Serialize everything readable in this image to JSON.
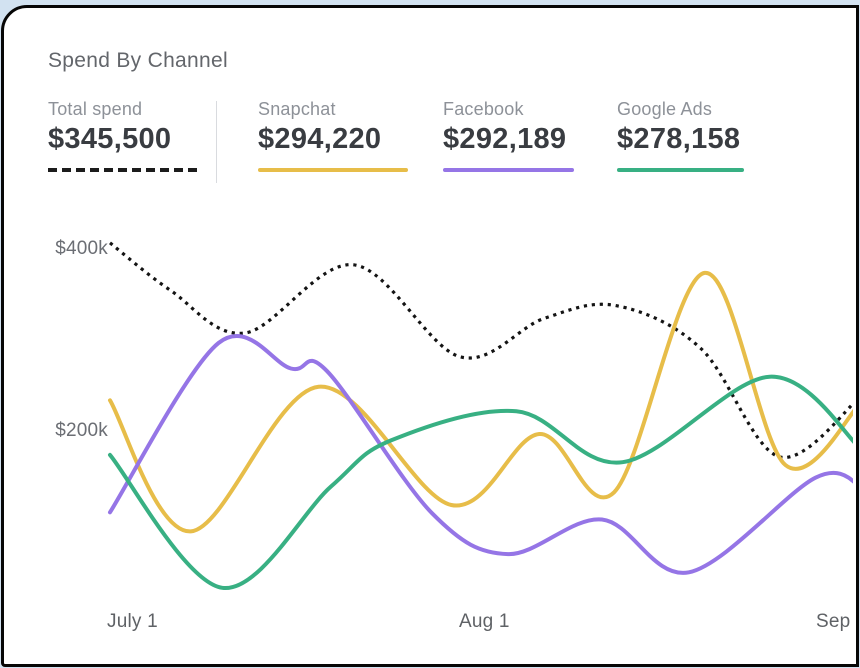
{
  "title": "Spend By Channel",
  "chart_data": {
    "type": "line",
    "title": "Spend By Channel",
    "x_axis": {
      "ticks": [
        "July 1",
        "Aug 1",
        "Sep"
      ],
      "unit": "date",
      "domain_days": [
        0,
        62.3
      ]
    },
    "y_axis": {
      "ticks": [
        "$400k",
        "$200k"
      ],
      "tick_values_k": [
        400,
        200
      ],
      "unit": "USD thousands",
      "grid": false
    },
    "legend_position": "top",
    "series": [
      {
        "name": "Total spend",
        "total": "$345,500",
        "color": "#141414",
        "line_style": "dotted",
        "points_day_valuek": [
          [
            0,
            399
          ],
          [
            5,
            347
          ],
          [
            11.2,
            300
          ],
          [
            20.2,
            375
          ],
          [
            29,
            274
          ],
          [
            36,
            316
          ],
          [
            42,
            330
          ],
          [
            49,
            283
          ],
          [
            55.5,
            164
          ],
          [
            62.3,
            231
          ]
        ]
      },
      {
        "name": "Snapchat",
        "total": "$294,220",
        "color": "#e7bd49",
        "line_style": "solid",
        "points_day_valuek": [
          [
            0,
            226
          ],
          [
            6.7,
            82
          ],
          [
            17.3,
            241
          ],
          [
            28.3,
            111
          ],
          [
            35.6,
            189
          ],
          [
            41.8,
            125
          ],
          [
            49.3,
            366
          ],
          [
            56,
            155
          ],
          [
            62.3,
            224
          ]
        ]
      },
      {
        "name": "Facebook",
        "total": "$292,189",
        "color": "#9575e6",
        "line_style": "solid",
        "points_day_valuek": [
          [
            0,
            103
          ],
          [
            9,
            289
          ],
          [
            15,
            261
          ],
          [
            18,
            258
          ],
          [
            26.7,
            102
          ],
          [
            33,
            57
          ],
          [
            40.8,
            95
          ],
          [
            48,
            37
          ],
          [
            58.5,
            141
          ],
          [
            62.3,
            131
          ]
        ]
      },
      {
        "name": "Google Ads",
        "total": "$278,158",
        "color": "#38b083",
        "line_style": "solid",
        "points_day_valuek": [
          [
            0,
            166
          ],
          [
            9.3,
            20
          ],
          [
            18.3,
            131
          ],
          [
            23.3,
            182
          ],
          [
            33.7,
            214
          ],
          [
            42.5,
            158
          ],
          [
            54.7,
            252
          ],
          [
            62.3,
            172
          ]
        ]
      }
    ]
  }
}
